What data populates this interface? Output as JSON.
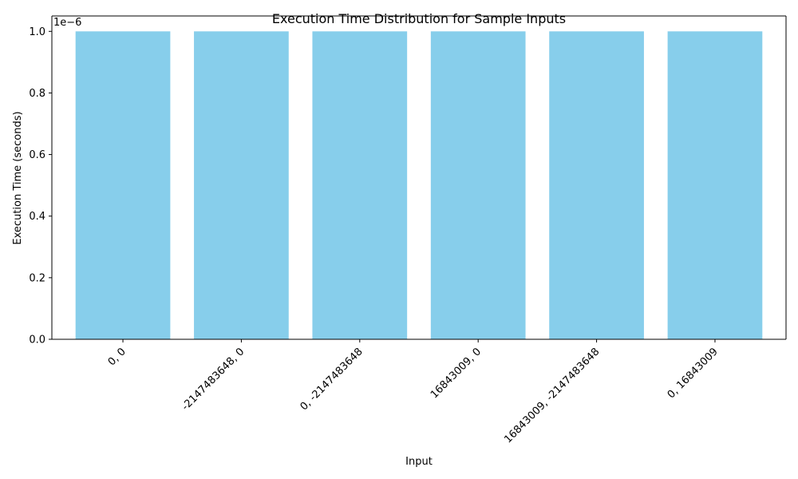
{
  "chart_data": {
    "type": "bar",
    "title": "Execution Time Distribution for Sample Inputs",
    "xlabel": "Input",
    "ylabel": "Execution Time (seconds)",
    "offset_label": "1e−6",
    "categories": [
      "0, 0",
      "-2147483648, 0",
      "0, -2147483648",
      "16843009, 0",
      "16843009, -2147483648",
      "0, 16843009"
    ],
    "values": [
      1e-06,
      1e-06,
      1e-06,
      1e-06,
      1e-06,
      1e-06
    ],
    "ylim": [
      0,
      1.05e-06
    ],
    "yticks": [
      0,
      0.2,
      0.4,
      0.6,
      0.8,
      1.0
    ],
    "ytick_labels": [
      "0.0",
      "0.2",
      "0.4",
      "0.6",
      "0.8",
      "1.0"
    ],
    "bar_color": "#87CEEB",
    "grid": false,
    "legend": "none"
  }
}
